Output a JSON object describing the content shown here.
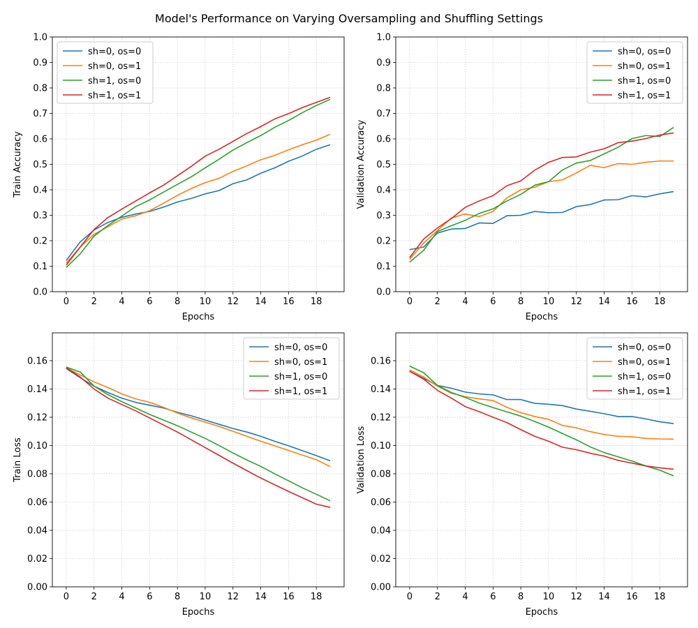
{
  "title": "Model's Performance on Varying Oversampling and Shuffling Settings",
  "colors": [
    "#1f77b4",
    "#ff7f0e",
    "#2ca02c",
    "#d62728"
  ],
  "chart_data": [
    {
      "type": "line",
      "xlabel": "Epochs",
      "ylabel": "Train Accuracy",
      "x": [
        0,
        1,
        2,
        3,
        4,
        5,
        6,
        7,
        8,
        9,
        10,
        11,
        12,
        13,
        14,
        15,
        16,
        17,
        18,
        19
      ],
      "xlim": [
        -1,
        20
      ],
      "ylim": [
        0,
        1.0
      ],
      "xticks": [
        0,
        2,
        4,
        6,
        8,
        10,
        12,
        14,
        16,
        18
      ],
      "yticks": [
        0,
        0.1,
        0.2,
        0.3,
        0.4,
        0.5,
        0.6,
        0.7,
        0.8,
        0.9,
        1.0
      ],
      "ytick_labels": [
        "0.0",
        "0.1",
        "0.2",
        "0.3",
        "0.4",
        "0.5",
        "0.6",
        "0.7",
        "0.8",
        "0.9",
        "1.0"
      ],
      "legend": "top-left",
      "grid": true,
      "series": [
        {
          "name": "sh=0, os=0",
          "values": [
            0.122,
            0.195,
            0.242,
            0.272,
            0.292,
            0.305,
            0.315,
            0.332,
            0.352,
            0.366,
            0.384,
            0.397,
            0.424,
            0.439,
            0.465,
            0.486,
            0.512,
            0.533,
            0.559,
            0.577
          ]
        },
        {
          "name": "sh=0, os=1",
          "values": [
            0.112,
            0.175,
            0.225,
            0.255,
            0.285,
            0.298,
            0.318,
            0.347,
            0.378,
            0.405,
            0.428,
            0.445,
            0.472,
            0.494,
            0.518,
            0.535,
            0.557,
            0.577,
            0.595,
            0.618
          ]
        },
        {
          "name": "sh=1, os=0",
          "values": [
            0.095,
            0.148,
            0.218,
            0.26,
            0.297,
            0.334,
            0.36,
            0.391,
            0.421,
            0.451,
            0.486,
            0.52,
            0.556,
            0.585,
            0.613,
            0.645,
            0.672,
            0.703,
            0.731,
            0.755
          ]
        },
        {
          "name": "sh=1, os=1",
          "values": [
            0.104,
            0.175,
            0.244,
            0.291,
            0.324,
            0.356,
            0.388,
            0.418,
            0.455,
            0.492,
            0.532,
            0.559,
            0.59,
            0.621,
            0.648,
            0.678,
            0.699,
            0.723,
            0.743,
            0.763
          ]
        }
      ]
    },
    {
      "type": "line",
      "xlabel": "Epochs",
      "ylabel": "Validation Accuracy",
      "x": [
        0,
        1,
        2,
        3,
        4,
        5,
        6,
        7,
        8,
        9,
        10,
        11,
        12,
        13,
        14,
        15,
        16,
        17,
        18,
        19
      ],
      "xlim": [
        -1,
        20
      ],
      "ylim": [
        0,
        1.0
      ],
      "xticks": [
        0,
        2,
        4,
        6,
        8,
        10,
        12,
        14,
        16,
        18
      ],
      "yticks": [
        0,
        0.1,
        0.2,
        0.3,
        0.4,
        0.5,
        0.6,
        0.7,
        0.8,
        0.9,
        1.0
      ],
      "ytick_labels": [
        "0.0",
        "0.1",
        "0.2",
        "0.3",
        "0.4",
        "0.5",
        "0.6",
        "0.7",
        "0.8",
        "0.9",
        "1.0"
      ],
      "legend": "top-right",
      "grid": true,
      "series": [
        {
          "name": "sh=0, os=0",
          "values": [
            0.165,
            0.175,
            0.23,
            0.246,
            0.248,
            0.27,
            0.268,
            0.298,
            0.3,
            0.315,
            0.31,
            0.311,
            0.334,
            0.342,
            0.36,
            0.361,
            0.377,
            0.372,
            0.384,
            0.393
          ]
        },
        {
          "name": "sh=0, os=1",
          "values": [
            0.127,
            0.19,
            0.24,
            0.289,
            0.305,
            0.295,
            0.315,
            0.368,
            0.4,
            0.41,
            0.432,
            0.439,
            0.466,
            0.496,
            0.487,
            0.503,
            0.5,
            0.508,
            0.513,
            0.513
          ]
        },
        {
          "name": "sh=1, os=0",
          "values": [
            0.116,
            0.162,
            0.236,
            0.259,
            0.28,
            0.307,
            0.325,
            0.356,
            0.382,
            0.418,
            0.432,
            0.478,
            0.505,
            0.515,
            0.541,
            0.567,
            0.601,
            0.613,
            0.609,
            0.645
          ]
        },
        {
          "name": "sh=1, os=1",
          "values": [
            0.134,
            0.206,
            0.25,
            0.287,
            0.331,
            0.356,
            0.377,
            0.416,
            0.435,
            0.477,
            0.508,
            0.527,
            0.529,
            0.548,
            0.561,
            0.585,
            0.591,
            0.601,
            0.615,
            0.623
          ]
        }
      ]
    },
    {
      "type": "line",
      "xlabel": "Epochs",
      "ylabel": "Train Loss",
      "x": [
        0,
        1,
        2,
        3,
        4,
        5,
        6,
        7,
        8,
        9,
        10,
        11,
        12,
        13,
        14,
        15,
        16,
        17,
        18,
        19
      ],
      "xlim": [
        -1,
        20
      ],
      "ylim": [
        0,
        0.1797
      ],
      "xticks": [
        0,
        2,
        4,
        6,
        8,
        10,
        12,
        14,
        16,
        18
      ],
      "yticks": [
        0,
        0.02,
        0.04,
        0.06,
        0.08,
        0.1,
        0.12,
        0.14,
        0.16
      ],
      "ytick_labels": [
        "0.00",
        "0.02",
        "0.04",
        "0.06",
        "0.08",
        "0.10",
        "0.12",
        "0.14",
        "0.16"
      ],
      "legend": "top-right",
      "grid": true,
      "series": [
        {
          "name": "sh=0, os=0",
          "values": [
            0.1545,
            0.148,
            0.142,
            0.1375,
            0.1335,
            0.1305,
            0.1285,
            0.1265,
            0.1235,
            0.121,
            0.118,
            0.115,
            0.112,
            0.1095,
            0.1065,
            0.103,
            0.0998,
            0.0963,
            0.0928,
            0.0892
          ]
        },
        {
          "name": "sh=0, os=1",
          "values": [
            0.155,
            0.15,
            0.145,
            0.141,
            0.1365,
            0.133,
            0.1305,
            0.127,
            0.123,
            0.1195,
            0.1165,
            0.1135,
            0.11,
            0.1065,
            0.103,
            0.0998,
            0.0965,
            0.0932,
            0.09,
            0.085
          ]
        },
        {
          "name": "sh=1, os=0",
          "values": [
            0.1555,
            0.152,
            0.142,
            0.136,
            0.131,
            0.1265,
            0.122,
            0.118,
            0.114,
            0.1095,
            0.105,
            0.1,
            0.0947,
            0.0898,
            0.0852,
            0.08,
            0.075,
            0.07,
            0.0655,
            0.0608
          ]
        },
        {
          "name": "sh=1, os=1",
          "values": [
            0.155,
            0.1485,
            0.14,
            0.1335,
            0.129,
            0.1245,
            0.1195,
            0.1145,
            0.1095,
            0.104,
            0.0985,
            0.093,
            0.0875,
            0.0822,
            0.077,
            0.0722,
            0.0675,
            0.063,
            0.0585,
            0.0562
          ]
        }
      ]
    },
    {
      "type": "line",
      "xlabel": "Epochs",
      "ylabel": "Validation Loss",
      "x": [
        0,
        1,
        2,
        3,
        4,
        5,
        6,
        7,
        8,
        9,
        10,
        11,
        12,
        13,
        14,
        15,
        16,
        17,
        18,
        19
      ],
      "xlim": [
        -1,
        20
      ],
      "ylim": [
        0,
        0.1797
      ],
      "xticks": [
        0,
        2,
        4,
        6,
        8,
        10,
        12,
        14,
        16,
        18
      ],
      "yticks": [
        0,
        0.02,
        0.04,
        0.06,
        0.08,
        0.1,
        0.12,
        0.14,
        0.16
      ],
      "ytick_labels": [
        "0.00",
        "0.02",
        "0.04",
        "0.06",
        "0.08",
        "0.10",
        "0.12",
        "0.14",
        "0.16"
      ],
      "legend": "top-right",
      "grid": true,
      "series": [
        {
          "name": "sh=0, os=0",
          "values": [
            0.1525,
            0.1475,
            0.1425,
            0.1405,
            0.1378,
            0.1365,
            0.1358,
            0.1325,
            0.1325,
            0.1298,
            0.1292,
            0.1282,
            0.1258,
            0.1242,
            0.1225,
            0.1205,
            0.1205,
            0.1188,
            0.1168,
            0.1155
          ]
        },
        {
          "name": "sh=0, os=1",
          "values": [
            0.1535,
            0.1485,
            0.142,
            0.137,
            0.1345,
            0.133,
            0.1318,
            0.127,
            0.1232,
            0.1205,
            0.1185,
            0.1142,
            0.1125,
            0.1098,
            0.1078,
            0.1065,
            0.1062,
            0.105,
            0.1046,
            0.1045
          ]
        },
        {
          "name": "sh=1, os=0",
          "values": [
            0.1562,
            0.1515,
            0.1425,
            0.1375,
            0.134,
            0.13,
            0.1268,
            0.1238,
            0.1208,
            0.117,
            0.113,
            0.1085,
            0.104,
            0.099,
            0.095,
            0.092,
            0.089,
            0.0855,
            0.0825,
            0.0785
          ]
        },
        {
          "name": "sh=1, os=1",
          "values": [
            0.1525,
            0.147,
            0.139,
            0.1335,
            0.1275,
            0.124,
            0.12,
            0.1162,
            0.1112,
            0.1065,
            0.103,
            0.0988,
            0.097,
            0.0945,
            0.0925,
            0.0895,
            0.0875,
            0.0855,
            0.0842,
            0.0832
          ]
        }
      ]
    }
  ]
}
